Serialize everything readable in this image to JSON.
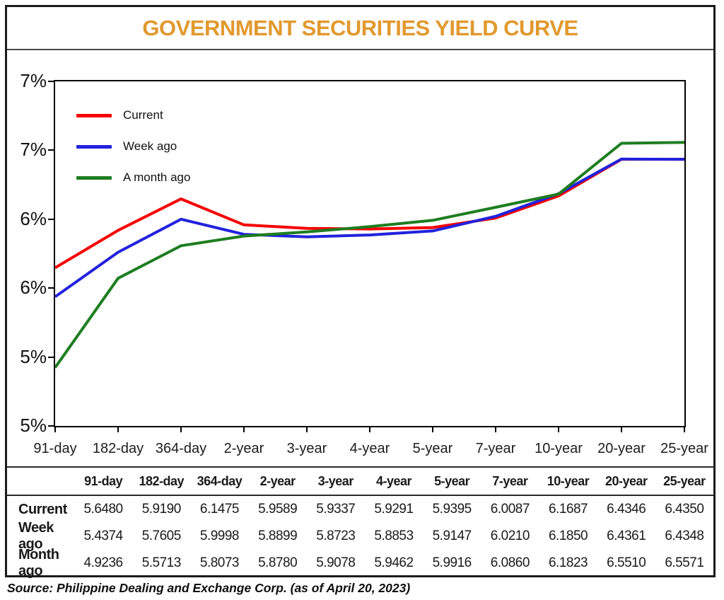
{
  "title": "GOVERNMENT SECURITIES YIELD CURVE",
  "source": "Source: Philippine Dealing and Exchange Corp. (as of April 20, 2023)",
  "colors": {
    "title_accent": "#E1992E",
    "current": "#F50000",
    "week_ago": "#2222DD",
    "month_ago": "#1E7D20"
  },
  "chart_data": {
    "type": "line",
    "title": "GOVERNMENT SECURITIES YIELD CURVE",
    "categories": [
      "91-day",
      "182-day",
      "364-day",
      "2-year",
      "3-year",
      "4-year",
      "5-year",
      "7-year",
      "10-year",
      "20-year",
      "25-year"
    ],
    "series": [
      {
        "name": "Current",
        "color": "#F50000",
        "values": [
          5.648,
          5.919,
          6.1475,
          5.9589,
          5.9337,
          5.9291,
          5.9395,
          6.0087,
          6.1687,
          6.4346,
          6.435
        ]
      },
      {
        "name": "Week ago",
        "color": "#2222DD",
        "values": [
          5.4374,
          5.7605,
          5.9998,
          5.8899,
          5.8723,
          5.8853,
          5.9147,
          6.021,
          6.185,
          6.4361,
          6.4348
        ]
      },
      {
        "name": "A month ago",
        "color": "#1E7D20",
        "values": [
          4.9236,
          5.5713,
          5.8073,
          5.878,
          5.9078,
          5.9462,
          5.9916,
          6.086,
          6.1823,
          6.551,
          6.5571
        ]
      }
    ],
    "ylim": [
      4.5,
      7.0
    ],
    "ytick_values": [
      7.0,
      6.5,
      6.0,
      5.5,
      5.0,
      4.5
    ],
    "ytick_labels": [
      "7%",
      "7%",
      "6%",
      "6%",
      "5%",
      "5%"
    ],
    "ylabel": "",
    "xlabel": "",
    "grid": false,
    "legend_position": "top-left"
  },
  "table": {
    "columns": [
      "91-day",
      "182-day",
      "364-day",
      "2-year",
      "3-year",
      "4-year",
      "5-year",
      "7-year",
      "10-year",
      "20-year",
      "25-year"
    ],
    "rows": [
      {
        "label": "Current",
        "values": [
          "5.6480",
          "5.9190",
          "6.1475",
          "5.9589",
          "5.9337",
          "5.9291",
          "5.9395",
          "6.0087",
          "6.1687",
          "6.4346",
          "6.4350"
        ]
      },
      {
        "label": "Week ago",
        "values": [
          "5.4374",
          "5.7605",
          "5.9998",
          "5.8899",
          "5.8723",
          "5.8853",
          "5.9147",
          "6.0210",
          "6.1850",
          "6.4361",
          "6.4348"
        ]
      },
      {
        "label": "Month ago",
        "values": [
          "4.9236",
          "5.5713",
          "5.8073",
          "5.8780",
          "5.9078",
          "5.9462",
          "5.9916",
          "6.0860",
          "6.1823",
          "6.5510",
          "6.5571"
        ]
      }
    ]
  }
}
